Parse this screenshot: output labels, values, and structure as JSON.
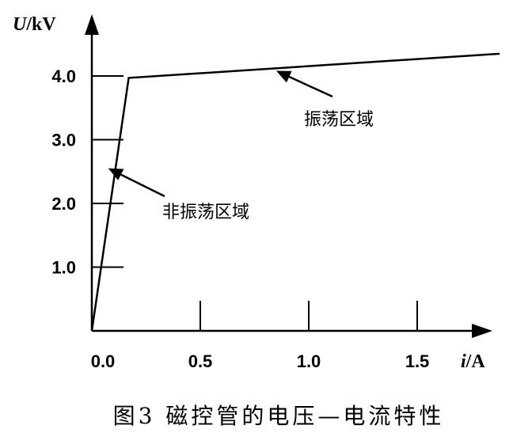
{
  "chart_data": {
    "type": "line",
    "caption": "图3 磁控管的电压—电流特性",
    "ylabel": {
      "var": "U",
      "unit": "/kV"
    },
    "xlabel": {
      "var": "i",
      "unit": "/A"
    },
    "xlim": [
      0,
      1.8
    ],
    "ylim": [
      0,
      4.5
    ],
    "xticks": [
      {
        "value": 0.0,
        "label": "0.0"
      },
      {
        "value": 0.5,
        "label": "0.5"
      },
      {
        "value": 1.0,
        "label": "1.0"
      },
      {
        "value": 1.5,
        "label": "1.5"
      }
    ],
    "yticks": [
      {
        "value": 1.0,
        "label": "1.0"
      },
      {
        "value": 2.0,
        "label": "2.0"
      },
      {
        "value": 3.0,
        "label": "3.0"
      },
      {
        "value": 4.0,
        "label": "4.0"
      }
    ],
    "series": [
      {
        "x": [
          0.0,
          0.17,
          1.88
        ],
        "y": [
          0.0,
          3.97,
          4.35
        ]
      }
    ],
    "annotations": [
      {
        "text": "振荡区域",
        "point": [
          0.85,
          4.08
        ]
      },
      {
        "text": "非振荡区域",
        "point": [
          0.09,
          2.75
        ]
      }
    ],
    "colors": {
      "line": "#000000",
      "background": "#ffffff"
    }
  }
}
